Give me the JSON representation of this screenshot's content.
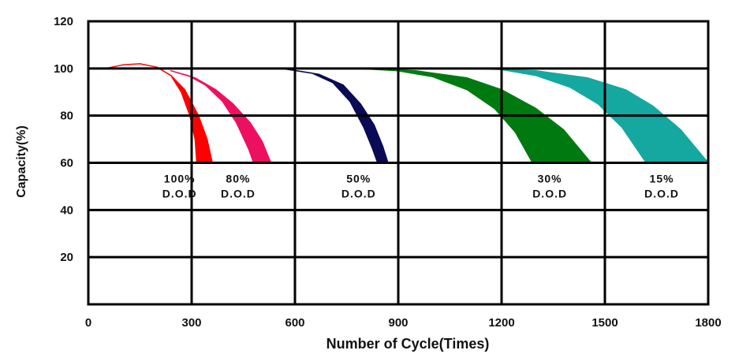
{
  "chart_data": {
    "type": "area",
    "title": "",
    "xlabel": "Number of Cycle(Times)",
    "ylabel": "Capacity(%)",
    "xlim": [
      0,
      1800
    ],
    "ylim": [
      0,
      120
    ],
    "x_ticks": [
      "0",
      "300",
      "600",
      "900",
      "1200",
      "1500",
      "1800"
    ],
    "y_ticks": [
      "20",
      "40",
      "60",
      "80",
      "100",
      "120"
    ],
    "grid": true,
    "legend": "none",
    "series": [
      {
        "name": "100% D.O.D",
        "color": "#ff0000",
        "label_lines": [
          "100%",
          "D.O.D"
        ],
        "label_at": [
          265,
          58
        ],
        "upper": [
          [
            50,
            100
          ],
          [
            100,
            101.5
          ],
          [
            150,
            102
          ],
          [
            200,
            100.5
          ],
          [
            240,
            97
          ],
          [
            270,
            90
          ],
          [
            295,
            80
          ],
          [
            310,
            70
          ],
          [
            315,
            60
          ]
        ],
        "lower": [
          [
            50,
            100
          ],
          [
            100,
            101.5
          ],
          [
            150,
            102
          ],
          [
            200,
            100.5
          ],
          [
            240,
            97
          ],
          [
            280,
            91
          ],
          [
            320,
            80
          ],
          [
            345,
            70
          ],
          [
            360,
            60
          ]
        ]
      },
      {
        "name": "80% D.O.D",
        "color": "#ee1060",
        "label_lines": [
          "80%",
          "D.O.D"
        ],
        "label_at": [
          435,
          58
        ],
        "upper": [
          [
            240,
            99
          ],
          [
            290,
            97
          ],
          [
            340,
            93
          ],
          [
            390,
            86
          ],
          [
            430,
            77
          ],
          [
            465,
            66
          ],
          [
            480,
            60
          ]
        ],
        "lower": [
          [
            240,
            99
          ],
          [
            310,
            96
          ],
          [
            370,
            91
          ],
          [
            420,
            85
          ],
          [
            470,
            77
          ],
          [
            505,
            69
          ],
          [
            530,
            60
          ]
        ]
      },
      {
        "name": "50% D.O.D",
        "color": "#0a0a55",
        "label_lines": [
          "50%",
          "D.O.D"
        ],
        "label_at": [
          785,
          58
        ],
        "upper": [
          [
            560,
            100
          ],
          [
            650,
            98
          ],
          [
            710,
            94
          ],
          [
            760,
            86
          ],
          [
            800,
            75
          ],
          [
            825,
            66
          ],
          [
            840,
            60
          ]
        ],
        "lower": [
          [
            560,
            100
          ],
          [
            670,
            97.5
          ],
          [
            740,
            93
          ],
          [
            790,
            85
          ],
          [
            830,
            76
          ],
          [
            855,
            67
          ],
          [
            870,
            60
          ]
        ]
      },
      {
        "name": "30% D.O.D",
        "color": "#007a10",
        "label_lines": [
          "30%",
          "D.O.D"
        ],
        "label_at": [
          1340,
          58
        ],
        "upper": [
          [
            780,
            100
          ],
          [
            900,
            99
          ],
          [
            1000,
            96.5
          ],
          [
            1100,
            91
          ],
          [
            1180,
            83
          ],
          [
            1240,
            73
          ],
          [
            1290,
            60
          ]
        ],
        "lower": [
          [
            780,
            100
          ],
          [
            950,
            99
          ],
          [
            1100,
            96
          ],
          [
            1200,
            91
          ],
          [
            1300,
            83
          ],
          [
            1380,
            74
          ],
          [
            1460,
            60
          ]
        ]
      },
      {
        "name": "15% D.O.D",
        "color": "#14a8a0",
        "label_lines": [
          "15%",
          "D.O.D"
        ],
        "label_at": [
          1665,
          58
        ],
        "upper": [
          [
            1100,
            100
          ],
          [
            1200,
            99.5
          ],
          [
            1300,
            97
          ],
          [
            1400,
            92
          ],
          [
            1480,
            85
          ],
          [
            1550,
            75
          ],
          [
            1620,
            60
          ]
        ],
        "lower": [
          [
            1100,
            100
          ],
          [
            1300,
            99
          ],
          [
            1450,
            96
          ],
          [
            1560,
            91
          ],
          [
            1640,
            84
          ],
          [
            1720,
            74
          ],
          [
            1800,
            60
          ]
        ]
      }
    ]
  }
}
